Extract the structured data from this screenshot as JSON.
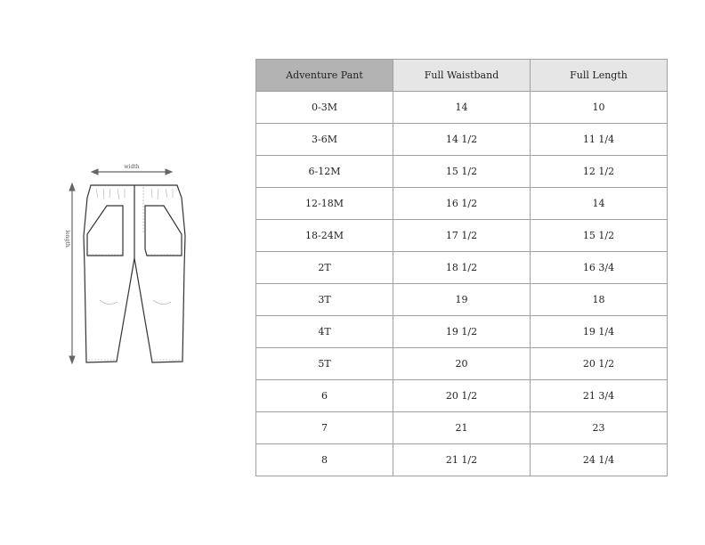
{
  "diagram": {
    "width_label": "width",
    "length_label": "length"
  },
  "table": {
    "headers": [
      "Adventure Pant",
      "Full Waistband",
      "Full Length"
    ],
    "rows": [
      [
        "0-3M",
        "14",
        "10"
      ],
      [
        "3-6M",
        "14 1/2",
        "11 1/4"
      ],
      [
        "6-12M",
        "15 1/2",
        "12 1/2"
      ],
      [
        "12-18M",
        "16 1/2",
        "14"
      ],
      [
        "18-24M",
        "17 1/2",
        "15 1/2"
      ],
      [
        "2T",
        "18 1/2",
        "16 3/4"
      ],
      [
        "3T",
        "19",
        "18"
      ],
      [
        "4T",
        "19 1/2",
        "19 1/4"
      ],
      [
        "5T",
        "20",
        "20 1/2"
      ],
      [
        "6",
        "20 1/2",
        "21 3/4"
      ],
      [
        "7",
        "21",
        "23"
      ],
      [
        "8",
        "21 1/2",
        "24 1/4"
      ]
    ]
  }
}
